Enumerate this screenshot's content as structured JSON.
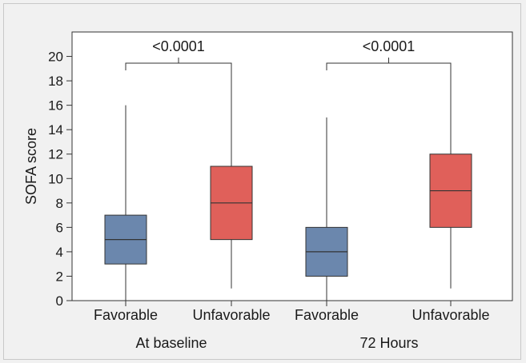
{
  "chart_data": {
    "type": "box",
    "ylabel": "SOFA score",
    "ylim": [
      0,
      22
    ],
    "yticks": [
      0,
      2,
      4,
      6,
      8,
      10,
      12,
      14,
      16,
      18,
      20
    ],
    "groups": [
      {
        "label": "At baseline",
        "comparison_label": "<0.0001",
        "boxes": [
          {
            "category": "Favorable",
            "min": 0,
            "q1": 3,
            "median": 5,
            "q3": 7,
            "max": 16,
            "color": "#6b87ad"
          },
          {
            "category": "Unfavorable",
            "min": 1,
            "q1": 5,
            "median": 8,
            "q3": 11,
            "max": 19,
            "color": "#e0605a"
          }
        ]
      },
      {
        "label": "72 Hours",
        "comparison_label": "<0.0001",
        "boxes": [
          {
            "category": "Favorable",
            "min": 0,
            "q1": 2,
            "median": 4,
            "q3": 6,
            "max": 15,
            "color": "#6b87ad"
          },
          {
            "category": "Unfavorable",
            "min": 1,
            "q1": 6,
            "median": 9,
            "q3": 12,
            "max": 19,
            "color": "#e0605a"
          }
        ]
      }
    ],
    "grid": false
  }
}
